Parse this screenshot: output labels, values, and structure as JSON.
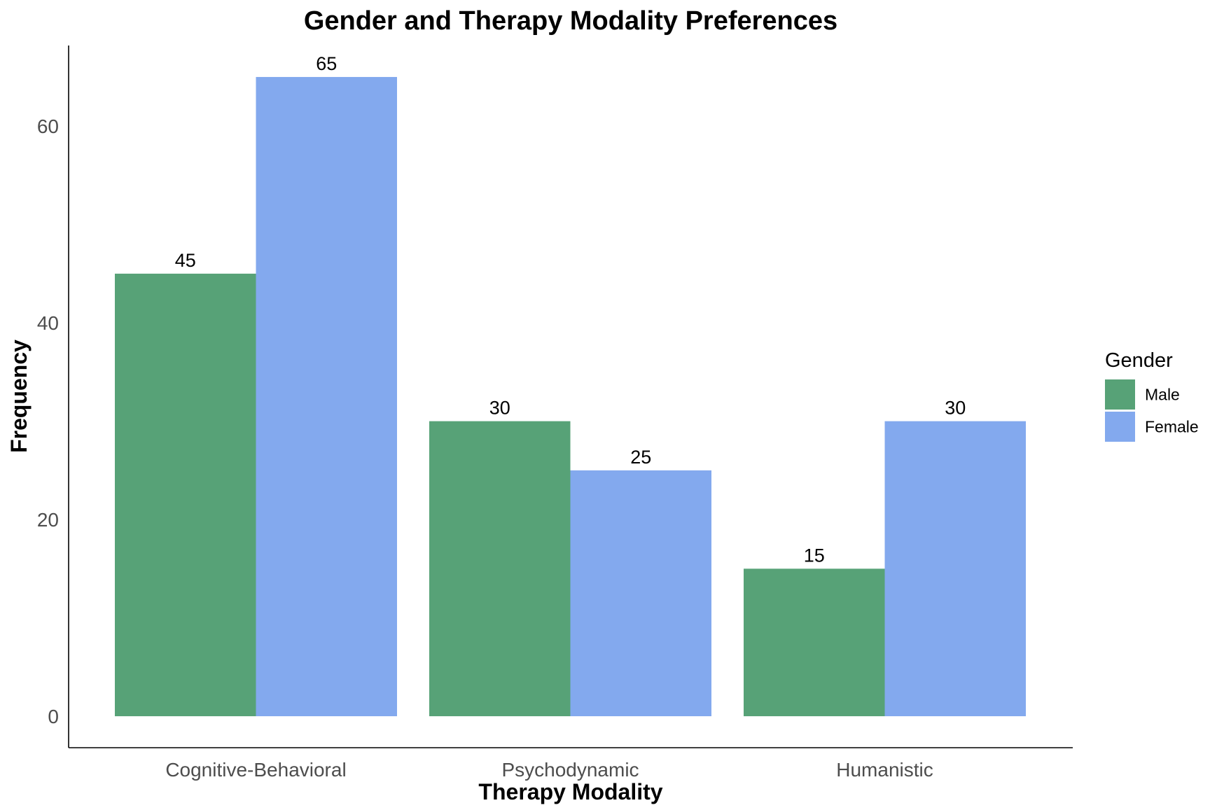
{
  "chart_data": {
    "type": "bar",
    "title": "Gender and Therapy Modality Preferences",
    "xlabel": "Therapy Modality",
    "ylabel": "Frequency",
    "categories": [
      "Cognitive-Behavioral",
      "Psychodynamic",
      "Humanistic"
    ],
    "series": [
      {
        "name": "Male",
        "values": [
          45,
          30,
          15
        ],
        "color": "#57A277"
      },
      {
        "name": "Female",
        "values": [
          65,
          25,
          30
        ],
        "color": "#83A9EE"
      }
    ],
    "yticks": [
      "0",
      "20",
      "40",
      "60"
    ],
    "ytick_values": [
      0,
      20,
      40,
      60
    ],
    "ylim": [
      -3.2,
      68.2
    ],
    "grid": false,
    "legend": {
      "title": "Gender",
      "placement": "right"
    },
    "data_labels": true
  }
}
